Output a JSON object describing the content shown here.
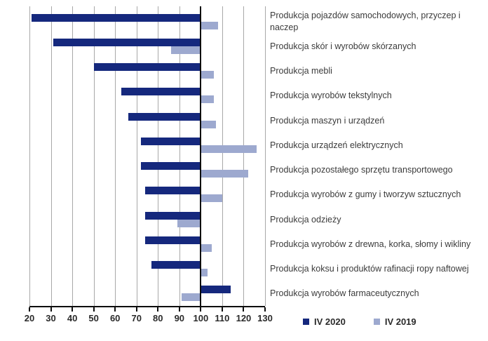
{
  "chart_data": {
    "type": "bar",
    "orientation": "horizontal",
    "title": "",
    "xlabel": "",
    "ylabel": "",
    "baseline": 100,
    "xlim": [
      20,
      130
    ],
    "x_ticks": [
      20,
      30,
      40,
      50,
      60,
      70,
      80,
      90,
      100,
      110,
      120,
      130
    ],
    "grid": true,
    "legend_position": "bottom-right",
    "categories": [
      "Produkcja pojazdów samochodowych, przyczep i naczep",
      "Produkcja skór i wyrobów skórzanych",
      "Produkcja mebli",
      "Produkcja wyrobów tekstylnych",
      "Produkcja maszyn i urządzeń",
      "Produkcja urządzeń elektrycznych",
      "Produkcja pozostałego sprzętu transportowego",
      "Produkcja wyrobów z gumy i tworzyw sztucznych",
      "Produkcja odzieży",
      "Produkcja wyrobów z drewna, korka, słomy i wikliny",
      "Produkcja koksu i produktów rafinacji ropy naftowej",
      "Produkcja wyrobów farmaceutycznych"
    ],
    "series": [
      {
        "name": "IV 2020",
        "color": "#15287d",
        "values": [
          21,
          31,
          50,
          63,
          66,
          72,
          72,
          74,
          74,
          74,
          77,
          114
        ]
      },
      {
        "name": "IV 2019",
        "color": "#9da9cf",
        "values": [
          108,
          86,
          106,
          106,
          107,
          126,
          122,
          110,
          89,
          105,
          103,
          91
        ]
      }
    ]
  },
  "colors": {
    "gridline": "#a8a8a8",
    "baseline": "#0d0d0d",
    "axis": "#0d0d0d",
    "text": "#3b3b3b"
  }
}
